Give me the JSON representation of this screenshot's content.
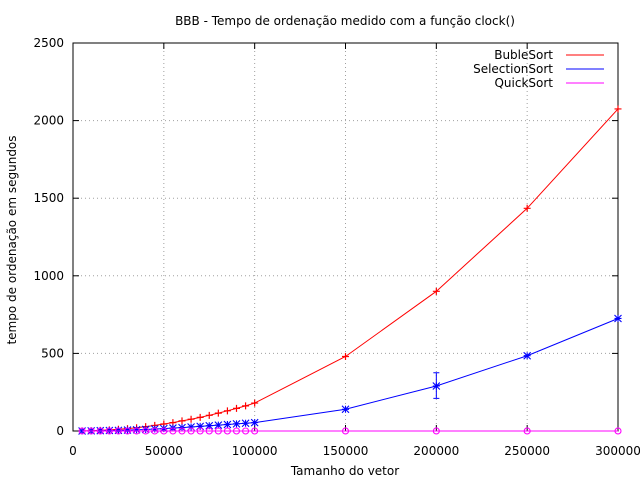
{
  "chart_data": {
    "type": "line",
    "title": "BBB - Tempo de ordenação medido com a função clock()",
    "xlabel": "Tamanho do vetor",
    "ylabel": "tempo de ordenação em segundos",
    "xlim": [
      0,
      300000
    ],
    "ylim": [
      0,
      2500
    ],
    "x_ticks": [
      "0",
      "50000",
      "100000",
      "150000",
      "200000",
      "250000",
      "300000"
    ],
    "x_tick_values": [
      0,
      50000,
      100000,
      150000,
      200000,
      250000,
      300000
    ],
    "y_ticks": [
      "0",
      "500",
      "1000",
      "1500",
      "2000",
      "2500"
    ],
    "y_tick_values": [
      0,
      500,
      1000,
      1500,
      2000,
      2500
    ],
    "grid": true,
    "legend_position": "top-right",
    "series": [
      {
        "name": "BubleSort",
        "color": "#ff0000",
        "marker": "plus",
        "points": [
          [
            5000,
            0.5
          ],
          [
            10000,
            2
          ],
          [
            15000,
            4
          ],
          [
            20000,
            7
          ],
          [
            25000,
            11
          ],
          [
            30000,
            15
          ],
          [
            35000,
            21
          ],
          [
            40000,
            28
          ],
          [
            45000,
            36
          ],
          [
            50000,
            45
          ],
          [
            55000,
            54
          ],
          [
            60000,
            65
          ],
          [
            65000,
            76
          ],
          [
            70000,
            88
          ],
          [
            75000,
            101
          ],
          [
            80000,
            115
          ],
          [
            85000,
            130
          ],
          [
            90000,
            146
          ],
          [
            95000,
            162
          ],
          [
            100000,
            180
          ],
          [
            150000,
            480
          ],
          [
            200000,
            900
          ],
          [
            250000,
            1435
          ],
          [
            300000,
            2075
          ]
        ]
      },
      {
        "name": "SelectionSort",
        "color": "#0000ff",
        "marker": "star",
        "points": [
          [
            5000,
            0.2
          ],
          [
            10000,
            0.8
          ],
          [
            15000,
            2
          ],
          [
            20000,
            3
          ],
          [
            25000,
            4
          ],
          [
            30000,
            6
          ],
          [
            35000,
            8
          ],
          [
            40000,
            10
          ],
          [
            45000,
            13
          ],
          [
            50000,
            15
          ],
          [
            55000,
            19
          ],
          [
            60000,
            22
          ],
          [
            65000,
            26
          ],
          [
            70000,
            30
          ],
          [
            75000,
            34
          ],
          [
            80000,
            38
          ],
          [
            85000,
            42
          ],
          [
            90000,
            46
          ],
          [
            95000,
            50
          ],
          [
            100000,
            54
          ],
          [
            150000,
            140
          ],
          [
            200000,
            290
          ],
          [
            250000,
            485
          ],
          [
            300000,
            725
          ]
        ],
        "error_bars": [
          {
            "x": 200000,
            "low": 210,
            "high": 375
          }
        ]
      },
      {
        "name": "QuickSort",
        "color": "#ff00ff",
        "marker": "circle",
        "points": [
          [
            5000,
            0
          ],
          [
            10000,
            0
          ],
          [
            15000,
            0
          ],
          [
            20000,
            0
          ],
          [
            25000,
            0
          ],
          [
            30000,
            0
          ],
          [
            35000,
            0
          ],
          [
            40000,
            0
          ],
          [
            45000,
            0
          ],
          [
            50000,
            0
          ],
          [
            55000,
            0
          ],
          [
            60000,
            0
          ],
          [
            65000,
            0
          ],
          [
            70000,
            0
          ],
          [
            75000,
            0
          ],
          [
            80000,
            0
          ],
          [
            85000,
            0
          ],
          [
            90000,
            0
          ],
          [
            95000,
            0
          ],
          [
            100000,
            0
          ],
          [
            150000,
            0.1
          ],
          [
            200000,
            0.1
          ],
          [
            250000,
            0.2
          ],
          [
            300000,
            0.2
          ]
        ]
      }
    ]
  }
}
